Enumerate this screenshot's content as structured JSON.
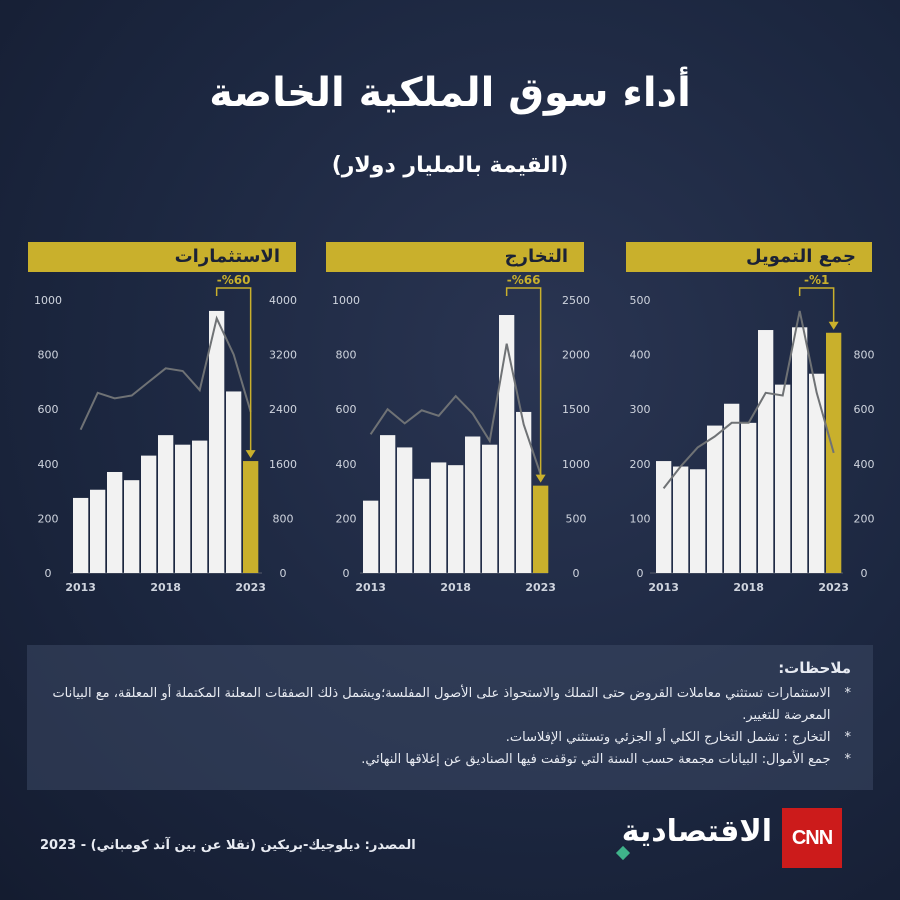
{
  "title": "أداء سوق الملكية الخاصة",
  "subtitle": "(القيمة بالمليار دولار)",
  "colors": {
    "highlight": "#c9b02c",
    "bar": "#f2f2f2",
    "line": "#6f7275",
    "grid": "#555c6b"
  },
  "chart_data": [
    {
      "type": "bar",
      "header": "الاستثمارات",
      "annotation": "-%60",
      "x": [
        2013,
        2014,
        2015,
        2016,
        2017,
        2018,
        2019,
        2020,
        2021,
        2022,
        2023
      ],
      "xticks": [
        "2013",
        "2018",
        "2023"
      ],
      "left_ticks": [
        "1000",
        "800",
        "600",
        "400",
        "200",
        "0"
      ],
      "right_ticks": [
        "4000",
        "3200",
        "2400",
        "1600",
        "800",
        "0"
      ],
      "ylim_left": [
        0,
        1000
      ],
      "ylim_right": [
        0,
        4000
      ],
      "series": [
        {
          "axis": "left",
          "type": "bar",
          "values": [
            275,
            305,
            370,
            340,
            430,
            505,
            470,
            485,
            960,
            665,
            410
          ]
        },
        {
          "axis": "right",
          "type": "line",
          "values": [
            2100,
            2640,
            2560,
            2600,
            2800,
            3000,
            2960,
            2680,
            3730,
            3200,
            2360
          ]
        }
      ]
    },
    {
      "type": "bar",
      "header": "التخارج",
      "annotation": "-%66",
      "x": [
        2013,
        2014,
        2015,
        2016,
        2017,
        2018,
        2019,
        2020,
        2021,
        2022,
        2023
      ],
      "xticks": [
        "2013",
        "2018",
        "2023"
      ],
      "left_ticks": [
        "1000",
        "800",
        "600",
        "400",
        "200",
        "0"
      ],
      "right_ticks": [
        "2500",
        "2000",
        "1500",
        "1000",
        "500",
        "0"
      ],
      "ylim_left": [
        0,
        1000
      ],
      "ylim_right": [
        0,
        2500
      ],
      "series": [
        {
          "axis": "left",
          "type": "bar",
          "values": [
            265,
            505,
            460,
            345,
            405,
            395,
            500,
            470,
            945,
            590,
            320
          ]
        },
        {
          "axis": "right",
          "type": "line",
          "values": [
            1270,
            1500,
            1370,
            1490,
            1440,
            1620,
            1460,
            1210,
            2100,
            1360,
            900
          ]
        }
      ]
    },
    {
      "type": "bar",
      "header": "جمع التمويل",
      "annotation": "-%1",
      "x": [
        2013,
        2014,
        2015,
        2016,
        2017,
        2018,
        2019,
        2020,
        2021,
        2022,
        2023
      ],
      "xticks": [
        "2013",
        "2018",
        "2023"
      ],
      "left_ticks": [
        "500",
        "400",
        "300",
        "200",
        "100",
        "0"
      ],
      "right_ticks": [
        "800",
        "600",
        "400",
        "200",
        "0"
      ],
      "ylim_left": [
        0,
        500
      ],
      "ylim_right": [
        0,
        1000
      ],
      "series": [
        {
          "axis": "left",
          "type": "bar",
          "values": [
            205,
            195,
            190,
            270,
            310,
            275,
            445,
            345,
            450,
            365,
            440
          ]
        },
        {
          "axis": "right",
          "type": "line",
          "values": [
            310,
            390,
            460,
            500,
            550,
            550,
            660,
            650,
            960,
            660,
            440
          ]
        }
      ]
    }
  ],
  "notes": {
    "title": "ملاحظات:",
    "items": [
      {
        "star": "*",
        "text": "الاستثمارات تستثني معاملات القروض حتى التملك والاستحواذ على الأصول المفلسة؛ويشمل ذلك الصفقات المعلنة المكتملة أو المعلقة، مع البيانات المعرضة للتغيير."
      },
      {
        "star": "*",
        "text": "التخارج : تشمل التخارج الكلي أو الجزئي وتستثني الإفلاسات."
      },
      {
        "star": "*",
        "text": "جمع الأموال: البيانات مجمعة حسب السنة التي توقفت فيها الصناديق عن إغلاقها النهائي."
      }
    ]
  },
  "source": "المصدر: ديلوجيك-بريكين (نقلا عن بين آند كومباني) - 2023",
  "logo": {
    "cnn": "CNN",
    "text": "الاقتصادية"
  }
}
